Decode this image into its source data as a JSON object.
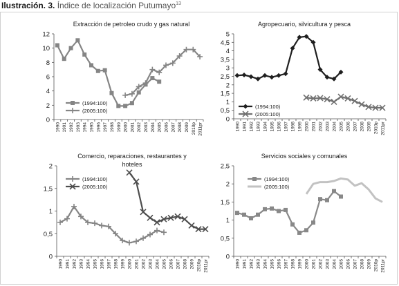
{
  "caption": {
    "label": "Ilustración. 3.",
    "title": "Índice de localización Putumayo",
    "footnote": "13"
  },
  "chart_data": [
    {
      "type": "line",
      "title": "Extracción de petroleo crudo y gas natural",
      "categories": [
        "1990",
        "1991",
        "1992",
        "1993",
        "1994",
        "1995",
        "1996",
        "1997",
        "1998",
        "1999",
        "2000",
        "2001",
        "2002",
        "2003",
        "2004",
        "2005",
        "2006",
        "2007",
        "2008",
        "2009",
        "2010p",
        "2011pr"
      ],
      "ylim": [
        0,
        12
      ],
      "yticks": [
        "0",
        "2",
        "4",
        "6",
        "8",
        "10",
        "12"
      ],
      "legend_position": "inside-bottom-left",
      "series": [
        {
          "name": "(1994:100)",
          "marker": "square",
          "color": "#858585",
          "values": [
            10.4,
            8.5,
            10.0,
            11.1,
            9.1,
            7.6,
            6.8,
            6.9,
            3.7,
            1.9,
            1.9,
            2.3,
            3.8,
            4.9,
            5.8,
            5.3,
            null,
            null,
            null,
            null,
            null,
            null
          ]
        },
        {
          "name": "(2005:100)",
          "marker": "plus",
          "color": "#858585",
          "values": [
            null,
            null,
            null,
            null,
            null,
            null,
            null,
            null,
            null,
            null,
            3.4,
            3.6,
            4.6,
            5.1,
            7.0,
            6.6,
            7.6,
            7.9,
            8.9,
            9.8,
            9.8,
            8.8
          ]
        }
      ]
    },
    {
      "type": "line",
      "title": "Agropecuario, silvicultura y pesca",
      "categories": [
        "1990",
        "1991",
        "1992",
        "1993",
        "1994",
        "1995",
        "1996",
        "1997",
        "1998",
        "1999",
        "2000",
        "2001",
        "2002",
        "2003",
        "2004",
        "2005",
        "2006",
        "2007",
        "2008",
        "2009",
        "2010p",
        "2011pr"
      ],
      "ylim": [
        0,
        5
      ],
      "yticks": [
        "0",
        "0,5",
        "1",
        "1,5",
        "2",
        "2,5",
        "3",
        "3,5",
        "4",
        "4,5",
        "5"
      ],
      "legend_position": "inside-bottom-left",
      "series": [
        {
          "name": "(1994:100)",
          "marker": "diamond",
          "color": "#1f1f1f",
          "values": [
            2.55,
            2.58,
            2.48,
            2.35,
            2.55,
            2.45,
            2.55,
            2.65,
            4.15,
            4.8,
            4.85,
            4.5,
            2.9,
            2.45,
            2.35,
            2.75,
            null,
            null,
            null,
            null,
            null,
            null
          ]
        },
        {
          "name": "(2005:100)",
          "marker": "x",
          "color": "#707070",
          "values": [
            null,
            null,
            null,
            null,
            null,
            null,
            null,
            null,
            null,
            null,
            1.25,
            1.2,
            1.22,
            1.15,
            1.0,
            1.3,
            1.2,
            1.05,
            0.85,
            0.7,
            0.65,
            0.65
          ]
        }
      ]
    },
    {
      "type": "line",
      "title": "Comercio, reparaciones, restaurantes y hoteles",
      "categories": [
        "1990",
        "1991",
        "1992",
        "1993",
        "1994",
        "1995",
        "1996",
        "1997",
        "1998",
        "1999",
        "2000",
        "2001",
        "2002",
        "2003",
        "2004",
        "2005",
        "2006",
        "2007",
        "2008",
        "2009",
        "2010p",
        "2011pr"
      ],
      "ylim": [
        0,
        2
      ],
      "yticks": [
        "0",
        "0,5",
        "1",
        "1,5",
        "2"
      ],
      "legend_position": "inside-top-left",
      "series": [
        {
          "name": "(1994:100)",
          "marker": "plus",
          "color": "#858585",
          "values": [
            0.75,
            0.83,
            1.1,
            0.88,
            0.75,
            0.73,
            0.68,
            0.66,
            0.5,
            0.35,
            0.3,
            0.33,
            0.4,
            0.48,
            0.57,
            0.53,
            null,
            null,
            null,
            null,
            null,
            null
          ]
        },
        {
          "name": "(2005:100)",
          "marker": "x",
          "color": "#4d4d4d",
          "values": [
            null,
            null,
            null,
            null,
            null,
            null,
            null,
            null,
            null,
            null,
            1.85,
            1.65,
            0.98,
            0.85,
            0.75,
            0.82,
            0.85,
            0.88,
            0.82,
            0.68,
            0.6,
            0.6
          ]
        }
      ]
    },
    {
      "type": "line",
      "title": "Servicios sociales y comunales",
      "categories": [
        "1990",
        "1991",
        "1992",
        "1993",
        "1994",
        "1995",
        "1996",
        "1997",
        "1998",
        "1999",
        "2000",
        "2001",
        "2002",
        "2003",
        "2004",
        "2005",
        "2006",
        "2007",
        "2008",
        "2009",
        "2010p",
        "2011pr"
      ],
      "ylim": [
        0,
        2.5
      ],
      "yticks": [
        "0",
        "0,5",
        "1",
        "1,5",
        "2",
        "2,5"
      ],
      "legend_position": "inside-top-left",
      "series": [
        {
          "name": "(1994:100)",
          "marker": "square",
          "color": "#888888",
          "values": [
            1.2,
            1.15,
            1.05,
            1.15,
            1.3,
            1.32,
            1.25,
            1.28,
            0.88,
            0.65,
            0.72,
            0.93,
            1.58,
            1.55,
            1.8,
            1.65,
            null,
            null,
            null,
            null,
            null,
            null
          ]
        },
        {
          "name": "(2005:100)",
          "marker": "none",
          "color": "#c2c2c2",
          "values": [
            null,
            null,
            null,
            null,
            null,
            null,
            null,
            null,
            null,
            null,
            1.72,
            2.0,
            2.05,
            2.05,
            2.08,
            2.15,
            2.12,
            1.95,
            2.02,
            1.85,
            1.6,
            1.5
          ]
        }
      ]
    }
  ]
}
